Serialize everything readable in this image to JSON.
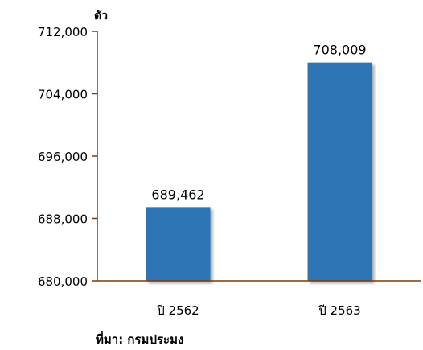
{
  "chart_data": {
    "type": "bar",
    "title": "",
    "xlabel": "",
    "ylabel": "ตัว",
    "categories": [
      "ปี 2562",
      "ปี 2563"
    ],
    "values": [
      689462,
      708009
    ],
    "data_labels": [
      "689,462",
      "708,009"
    ],
    "ylim": [
      680000,
      712000
    ],
    "y_ticks": [
      680000,
      688000,
      696000,
      704000,
      712000
    ],
    "y_tick_labels": [
      "680,000",
      "688,000",
      "696,000",
      "704,000",
      "712,000"
    ],
    "grid": false,
    "legend": "none",
    "colors": {
      "bar": "#2E75B6",
      "axis": "#7A3B0C"
    }
  },
  "source_note": "ที่มา: กรมประมง"
}
